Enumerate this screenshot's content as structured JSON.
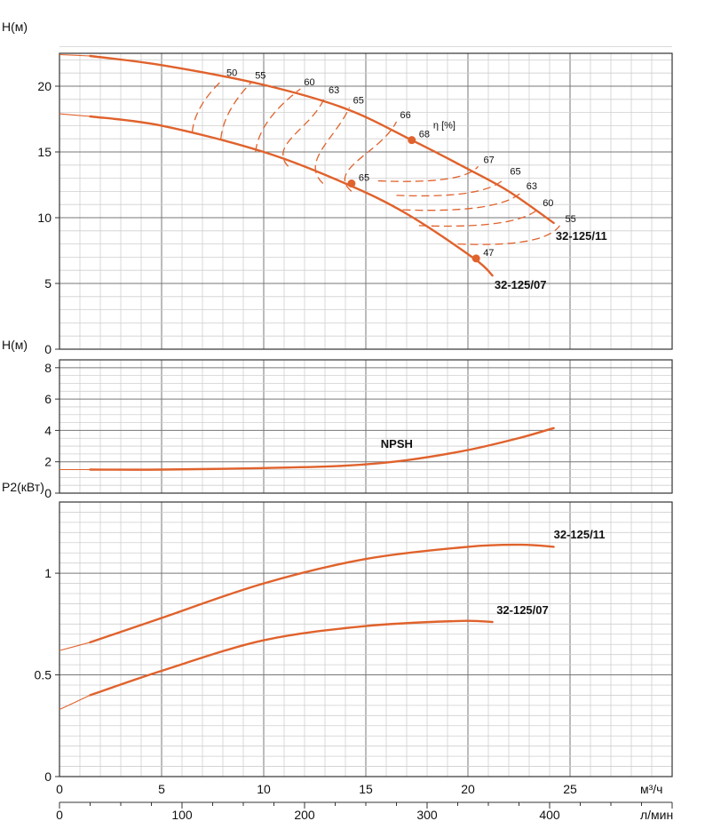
{
  "colors": {
    "curve": "#e0622c",
    "grid_major": "#777777",
    "grid_minor": "#cfcfcf"
  },
  "chart_data": [
    {
      "type": "line",
      "ylabel": "H(м)",
      "xlim": [
        0,
        30
      ],
      "ylim": [
        0,
        22.5
      ],
      "yticks": [
        0,
        5,
        10,
        15,
        20
      ],
      "series": [
        {
          "name": "32-125/11",
          "x": [
            0,
            1.5,
            5,
            10,
            14,
            17.25,
            20,
            22,
            24.2
          ],
          "y": [
            22.4,
            22.3,
            21.6,
            20.1,
            18.3,
            15.9,
            13.7,
            12.0,
            9.6
          ]
        },
        {
          "name": "32-125/07",
          "x": [
            0,
            1.5,
            5,
            10,
            14,
            17,
            20.3,
            21.2
          ],
          "y": [
            17.9,
            17.7,
            17.0,
            15.0,
            12.6,
            10.3,
            6.9,
            5.6
          ]
        }
      ],
      "efficiency_label": "η [%]",
      "efficiency_curves": [
        {
          "label": "50",
          "x": [
            6.5,
            8.0
          ],
          "y": [
            16.5,
            20.5
          ]
        },
        {
          "label": "55",
          "x": [
            7.9,
            9.4
          ],
          "y": [
            16.0,
            20.3
          ]
        },
        {
          "label": "60",
          "x": [
            9.6,
            11.8
          ],
          "y": [
            15.0,
            19.8
          ]
        },
        {
          "label": "63",
          "x": [
            11.2,
            13.0
          ],
          "y": [
            13.9,
            19.2
          ]
        },
        {
          "label": "65",
          "x": [
            12.9,
            14.2
          ],
          "y": [
            12.6,
            18.4
          ]
        },
        {
          "label": "66",
          "x": [
            14.3,
            16.5
          ],
          "y": [
            12.0,
            17.3
          ]
        },
        {
          "label": "67",
          "x": [
            15.6,
            20.5
          ],
          "y": [
            12.8,
            13.9
          ]
        },
        {
          "label": "65",
          "x": [
            16.5,
            21.8
          ],
          "y": [
            11.7,
            13.0
          ]
        },
        {
          "label": "63",
          "x": [
            16.8,
            22.6
          ],
          "y": [
            10.6,
            11.9
          ]
        },
        {
          "label": "60",
          "x": [
            17.6,
            23.4
          ],
          "y": [
            9.4,
            10.6
          ]
        },
        {
          "label": "55",
          "x": [
            19.5,
            24.5
          ],
          "y": [
            8.0,
            9.4
          ]
        }
      ],
      "points": [
        {
          "label": "68",
          "x": 17.25,
          "y": 15.9
        },
        {
          "label": "65",
          "x": 14.3,
          "y": 12.6
        },
        {
          "label": "47",
          "x": 20.4,
          "y": 6.9
        }
      ]
    },
    {
      "type": "line",
      "ylabel": "H(м)",
      "xlim": [
        0,
        30
      ],
      "ylim": [
        0,
        8.5
      ],
      "yticks": [
        0,
        2,
        4,
        6,
        8
      ],
      "series": [
        {
          "name": "NPSH",
          "x": [
            0,
            1.5,
            5,
            10,
            14,
            17,
            20,
            22.6,
            24.2
          ],
          "y": [
            1.5,
            1.5,
            1.5,
            1.6,
            1.75,
            2.1,
            2.75,
            3.55,
            4.15
          ]
        }
      ]
    },
    {
      "type": "line",
      "ylabel": "P2(кВт)",
      "xlim": [
        0,
        30
      ],
      "ylim": [
        0,
        1.35
      ],
      "yticks": [
        0,
        0.5,
        1
      ],
      "yticklabels": [
        "0",
        "0.5",
        "1"
      ],
      "series": [
        {
          "name": "32-125/11",
          "x": [
            0,
            1.5,
            5,
            10,
            15,
            20,
            22.6,
            24.2
          ],
          "y": [
            0.62,
            0.66,
            0.78,
            0.95,
            1.07,
            1.13,
            1.14,
            1.13
          ]
        },
        {
          "name": "32-125/07",
          "x": [
            0,
            1.5,
            5,
            10,
            15,
            19.5,
            21.2
          ],
          "y": [
            0.33,
            0.4,
            0.52,
            0.67,
            0.74,
            0.765,
            0.76
          ]
        }
      ],
      "xticks": [
        0,
        5,
        10,
        15,
        20,
        25
      ],
      "xlabel": "м³/ч",
      "x2ticks": [
        0,
        100,
        200,
        300,
        400
      ],
      "x2label": "л/мин"
    }
  ]
}
